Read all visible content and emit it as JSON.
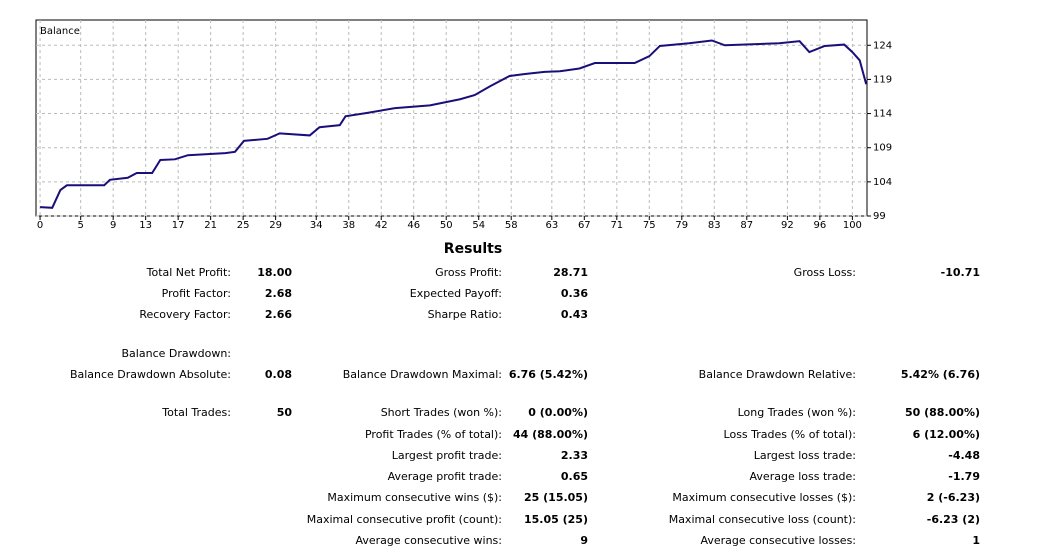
{
  "chart_data": {
    "type": "line",
    "title": "Balance",
    "x": [
      0,
      1.5,
      2.5,
      3.3,
      7.9,
      8.6,
      10.8,
      11.9,
      13.8,
      14.8,
      16.6,
      18.2,
      22.8,
      24,
      25.1,
      28,
      29.5,
      33.2,
      34.4,
      36.9,
      37.6,
      40.3,
      43.7,
      48,
      51.7,
      53.5,
      55.4,
      57.8,
      59.7,
      62.1,
      64,
      66.4,
      68.3,
      73.2,
      75,
      76.3,
      79.9,
      82.7,
      84.3,
      91,
      93.5,
      94.7,
      96.6,
      99,
      100,
      100.9,
      101.7
    ],
    "series": [
      {
        "name": "Balance",
        "color": "#1a0f7a",
        "values": [
          100.3,
          100.2,
          102.8,
          103.5,
          103.5,
          104.3,
          104.6,
          105.3,
          105.3,
          107.2,
          107.3,
          107.9,
          108.2,
          108.4,
          110,
          110.3,
          111.1,
          110.8,
          112,
          112.3,
          113.6,
          114.1,
          114.8,
          115.2,
          116.1,
          116.7,
          118,
          119.5,
          119.8,
          120.1,
          120.2,
          120.6,
          121.4,
          121.4,
          122.4,
          123.9,
          124.3,
          124.7,
          124,
          124.3,
          124.6,
          123,
          123.9,
          124.1,
          123,
          121.8,
          118.3
        ]
      }
    ],
    "xlim": [
      -0.5,
      101.8
    ],
    "xticks": [
      0,
      5,
      9,
      13,
      17,
      21,
      25,
      29,
      34,
      38,
      42,
      46,
      50,
      54,
      58,
      63,
      67,
      71,
      75,
      79,
      83,
      87,
      92,
      96,
      100
    ],
    "ylim": [
      99,
      127.7
    ],
    "yticks": [
      99,
      104,
      109,
      114,
      119,
      124
    ],
    "grid": true
  },
  "results": {
    "title": "Results",
    "rows": [
      [
        {
          "label": "Total Net Profit:",
          "value": "18.00"
        },
        {
          "label": "Gross Profit:",
          "value": "28.71"
        },
        {
          "label": "Gross Loss:",
          "value": "-10.71"
        }
      ],
      [
        {
          "label": "Profit Factor:",
          "value": "2.68"
        },
        {
          "label": "Expected Payoff:",
          "value": "0.36"
        },
        null
      ],
      [
        {
          "label": "Recovery Factor:",
          "value": "2.66"
        },
        {
          "label": "Sharpe Ratio:",
          "value": "0.43"
        },
        null
      ],
      [
        {
          "label": "Balance Drawdown:"
        },
        null,
        null
      ],
      [
        {
          "label": "Balance Drawdown Absolute:",
          "value": "0.08"
        },
        {
          "label": "Balance Drawdown Maximal:",
          "value": "6.76 (5.42%)"
        },
        {
          "label": "Balance Drawdown Relative:",
          "value": "5.42% (6.76)"
        }
      ],
      [
        {
          "label": "Total Trades:",
          "value": "50"
        },
        {
          "label": "Short Trades (won %):",
          "value": "0 (0.00%)"
        },
        {
          "label": "Long Trades (won %):",
          "value": "50 (88.00%)"
        }
      ],
      [
        null,
        {
          "label": "Profit Trades (% of total):",
          "value": "44 (88.00%)"
        },
        {
          "label": "Loss Trades (% of total):",
          "value": "6 (12.00%)"
        }
      ],
      [
        null,
        {
          "label": "Largest profit trade:",
          "value": "2.33"
        },
        {
          "label": "Largest loss trade:",
          "value": "-4.48"
        }
      ],
      [
        null,
        {
          "label": "Average profit trade:",
          "value": "0.65"
        },
        {
          "label": "Average loss trade:",
          "value": "-1.79"
        }
      ],
      [
        null,
        {
          "label": "Maximum consecutive wins ($):",
          "value": "25 (15.05)"
        },
        {
          "label": "Maximum consecutive losses ($):",
          "value": "2 (-6.23)"
        }
      ],
      [
        null,
        {
          "label": "Maximal consecutive profit (count):",
          "value": "15.05 (25)"
        },
        {
          "label": "Maximal consecutive loss (count):",
          "value": "-6.23 (2)"
        }
      ],
      [
        null,
        {
          "label": "Average consecutive wins:",
          "value": "9"
        },
        {
          "label": "Average consecutive losses:",
          "value": "1"
        }
      ]
    ]
  }
}
